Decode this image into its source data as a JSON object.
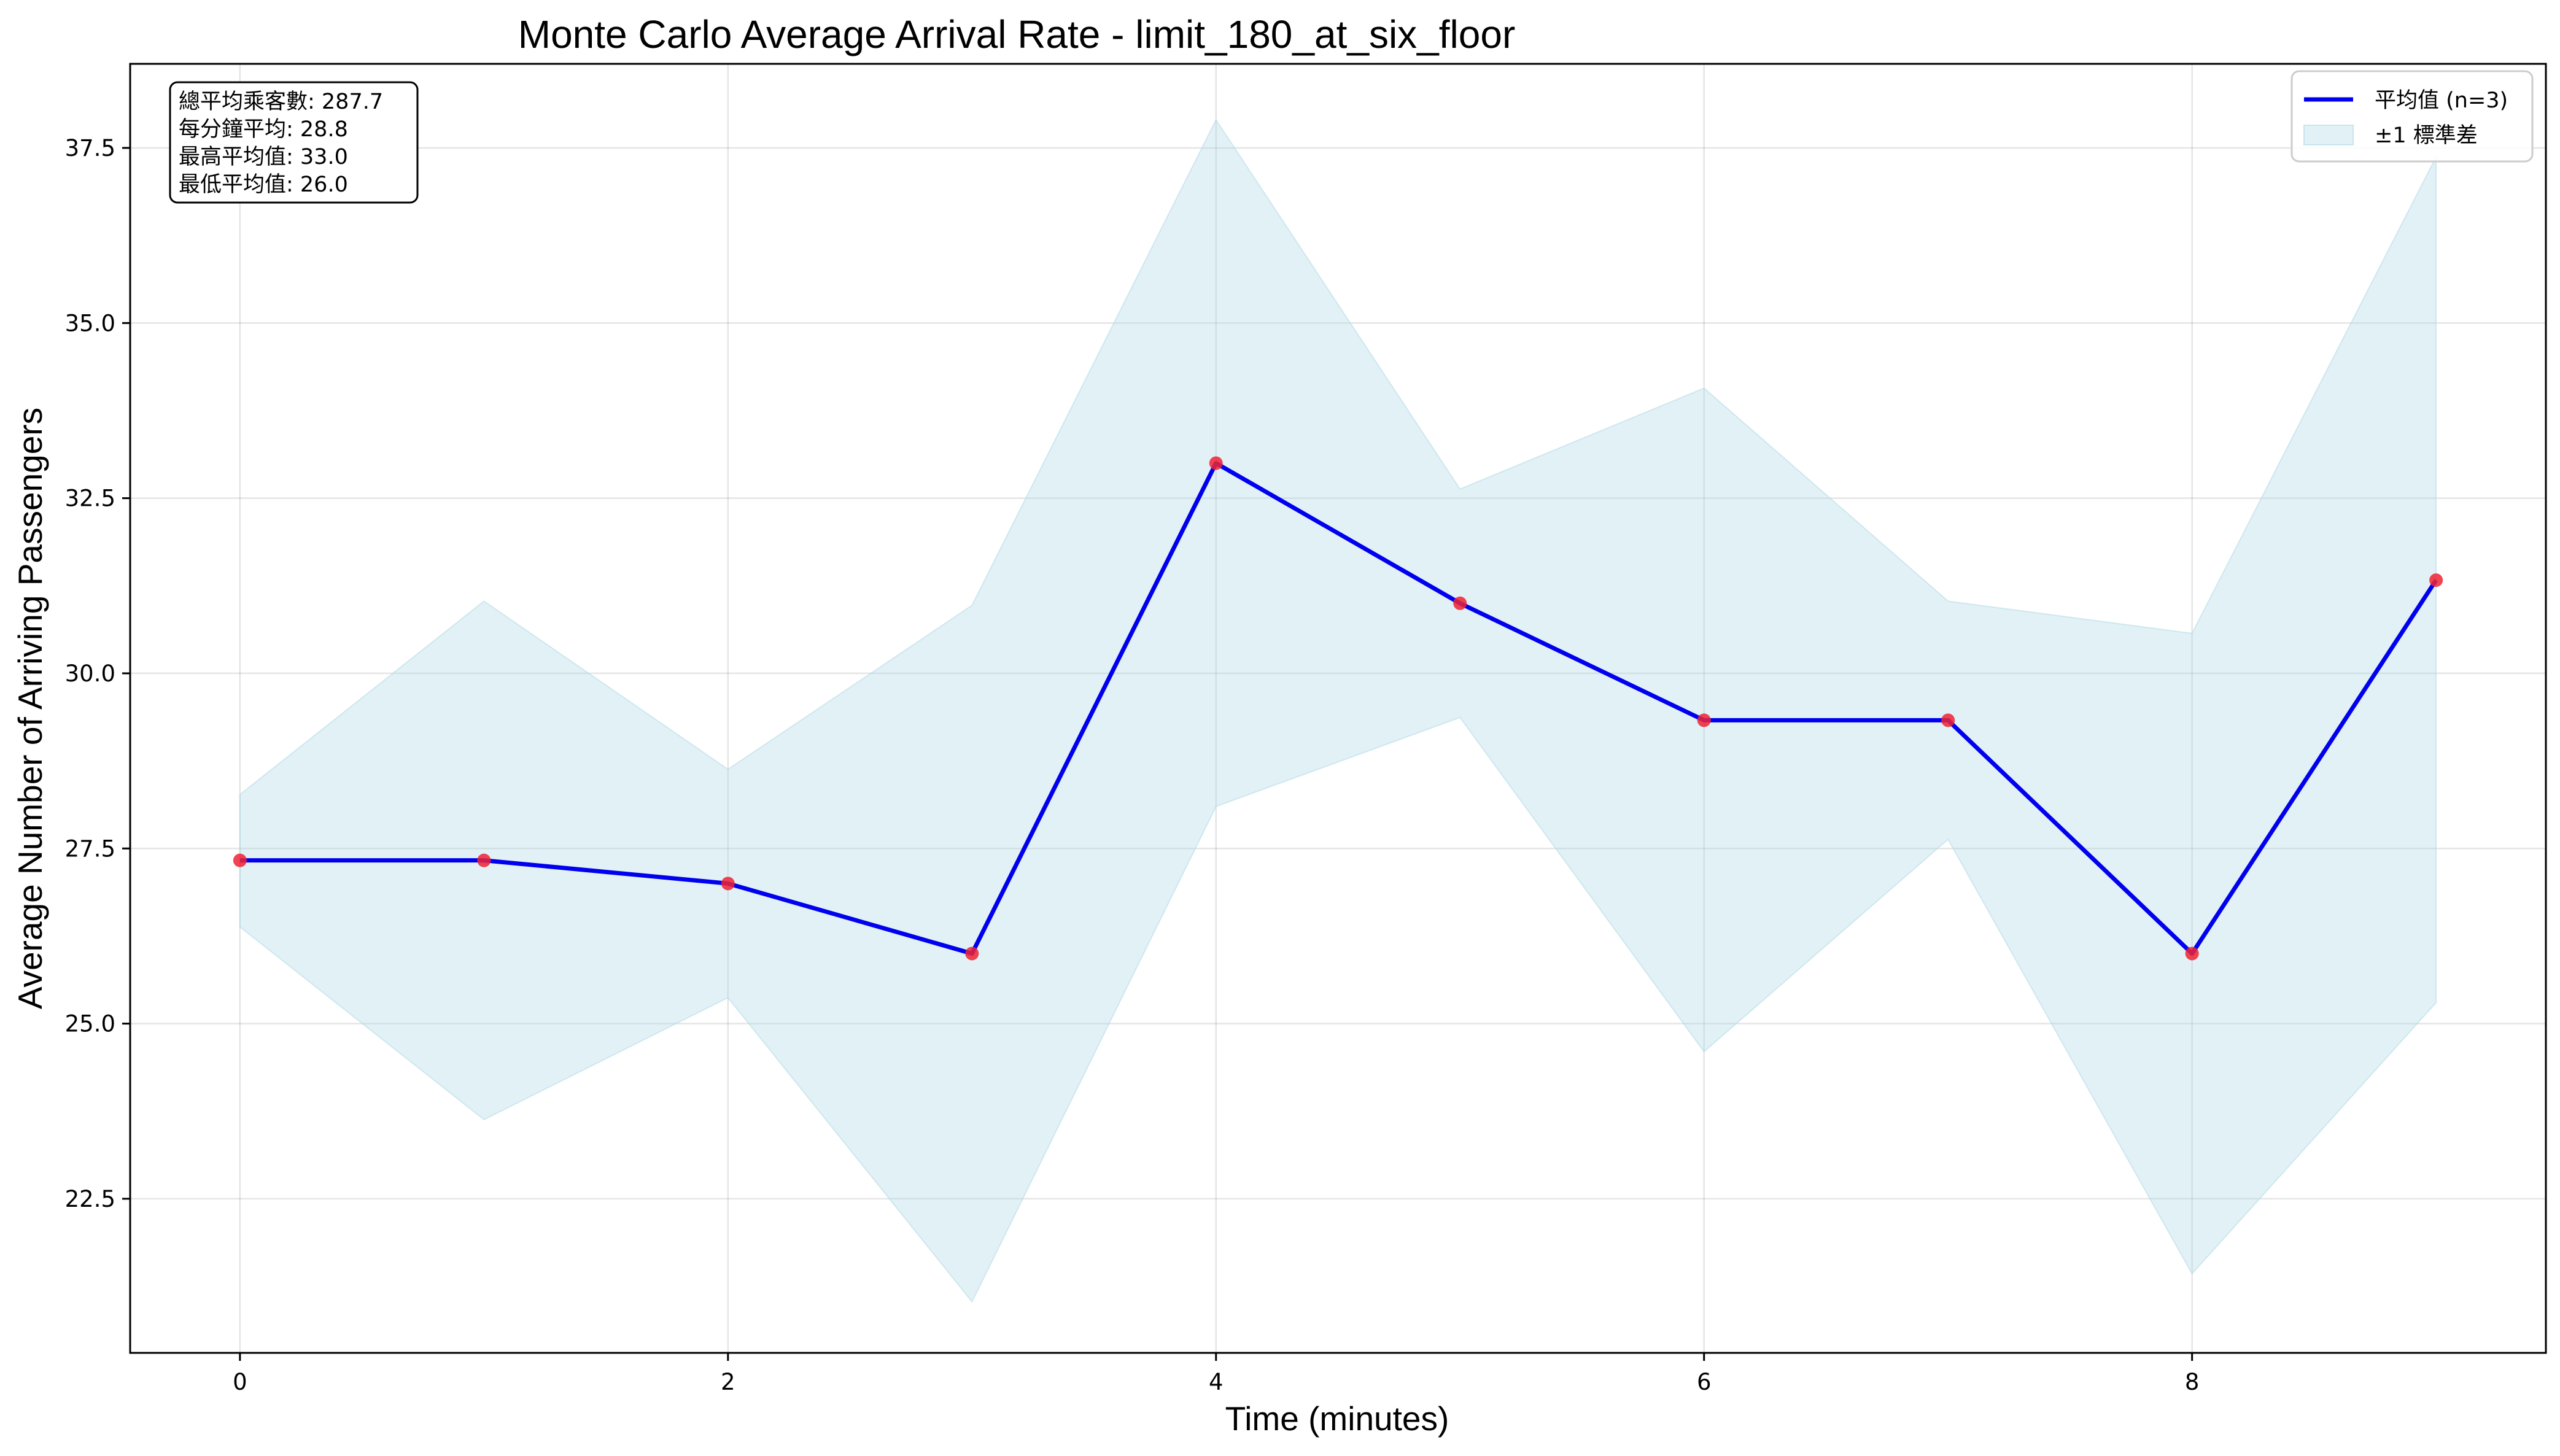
{
  "chart_data": {
    "type": "line",
    "title": "Monte Carlo Average Arrival Rate - limit_180_at_six_floor",
    "xlabel": "Time (minutes)",
    "ylabel": "Average Number of Arriving Passengers",
    "xlim": [
      -0.45,
      9.45
    ],
    "ylim": [
      20.3,
      38.7
    ],
    "xticks": [
      0,
      2,
      4,
      6,
      8
    ],
    "xtick_labels": [
      "0",
      "2",
      "4",
      "6",
      "8"
    ],
    "yticks": [
      22.5,
      25.0,
      27.5,
      30.0,
      32.5,
      35.0,
      37.5
    ],
    "ytick_labels": [
      "22.5",
      "25.0",
      "27.5",
      "30.0",
      "32.5",
      "35.0",
      "37.5"
    ],
    "grid": true,
    "legend_position": "top-right",
    "x": [
      0,
      1,
      2,
      3,
      4,
      5,
      6,
      7,
      8,
      9
    ],
    "series": [
      {
        "name": "平均值 (n=3)",
        "kind": "line",
        "color": "#0000ee",
        "marker_color": "#ee2233",
        "values": [
          27.33,
          27.33,
          27.0,
          26.0,
          33.0,
          31.0,
          29.33,
          29.33,
          26.0,
          31.33
        ]
      },
      {
        "name": "±1 標準差",
        "kind": "band",
        "color": "#add8e6",
        "upper": [
          28.27,
          31.03,
          28.63,
          30.97,
          37.9,
          32.63,
          34.07,
          31.03,
          30.57,
          37.37
        ],
        "lower": [
          26.38,
          23.63,
          25.37,
          21.03,
          28.1,
          29.37,
          24.6,
          27.63,
          21.43,
          25.3
        ]
      }
    ],
    "stats_box": [
      "總平均乘客數: 287.7",
      "每分鐘平均: 28.8",
      "最高平均值: 33.0",
      "最低平均值: 26.0"
    ]
  }
}
